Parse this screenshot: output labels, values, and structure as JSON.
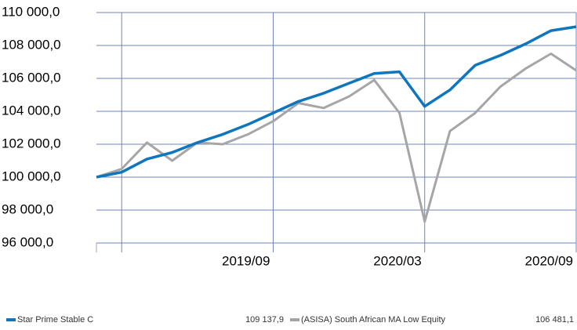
{
  "chart_data": {
    "type": "line",
    "categories": [
      null,
      null,
      null,
      null,
      null,
      null,
      null,
      "2019/09",
      null,
      null,
      null,
      null,
      null,
      "2020/03",
      null,
      null,
      null,
      null,
      null,
      "2020/09"
    ],
    "series": [
      {
        "name": "Star Prime Stable C",
        "color": "#0e76bc",
        "last_value_label": "109 137,9",
        "values": [
          100000,
          100300,
          101100,
          101500,
          102100,
          102600,
          103200,
          103900,
          104600,
          105100,
          105700,
          106300,
          106400,
          104300,
          105300,
          106800,
          107400,
          108100,
          108900,
          109137.9
        ]
      },
      {
        "name": "(ASISA) South African MA Low Equity",
        "color": "#a6a6a6",
        "last_value_label": "106 481,1",
        "values": [
          100000,
          100500,
          102100,
          101000,
          102100,
          102000,
          102600,
          103400,
          104500,
          104200,
          104900,
          105900,
          103900,
          97300,
          102800,
          103900,
          105500,
          106600,
          107500,
          106481.1
        ]
      }
    ],
    "ylim": [
      96000,
      110000
    ],
    "yticks": [
      {
        "value": 96000,
        "label": "96 000,0"
      },
      {
        "value": 98000,
        "label": "98 000,0"
      },
      {
        "value": 100000,
        "label": "100 000,0"
      },
      {
        "value": 102000,
        "label": "102 000,0"
      },
      {
        "value": 104000,
        "label": "104 000,0"
      },
      {
        "value": 106000,
        "label": "106 000,0"
      },
      {
        "value": 108000,
        "label": "108 000,0"
      },
      {
        "value": 110000,
        "label": "110 000,0"
      }
    ],
    "grid": true
  }
}
